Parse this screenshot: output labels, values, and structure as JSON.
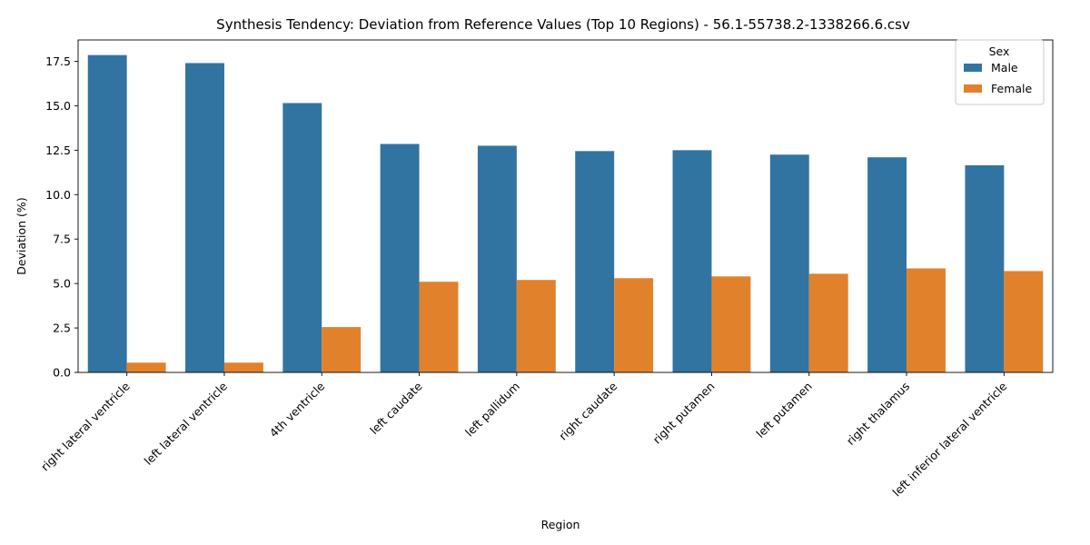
{
  "chart_data": {
    "type": "bar",
    "title": "Synthesis Tendency: Deviation from Reference Values (Top 10 Regions) - 56.1-55738.2-1338266.6.csv",
    "xlabel": "Region",
    "ylabel": "Deviation (%)",
    "ylim": [
      0,
      18.7
    ],
    "yticks": [
      "0.0",
      "2.5",
      "5.0",
      "7.5",
      "10.0",
      "12.5",
      "15.0",
      "17.5"
    ],
    "categories": [
      "right lateral ventricle",
      "left lateral ventricle",
      "4th ventricle",
      "left caudate",
      "left pallidum",
      "right caudate",
      "right putamen",
      "left putamen",
      "right thalamus",
      "left inferior lateral ventricle"
    ],
    "legend_title": "Sex",
    "legend_position": "top-right",
    "grid": false,
    "series": [
      {
        "name": "Male",
        "color": "#3274a1",
        "values": [
          17.85,
          17.4,
          15.15,
          12.85,
          12.75,
          12.45,
          12.5,
          12.25,
          12.1,
          11.65
        ]
      },
      {
        "name": "Female",
        "color": "#e1812c",
        "values": [
          0.55,
          0.55,
          2.55,
          5.1,
          5.2,
          5.3,
          5.4,
          5.55,
          5.85,
          5.7
        ]
      }
    ]
  }
}
